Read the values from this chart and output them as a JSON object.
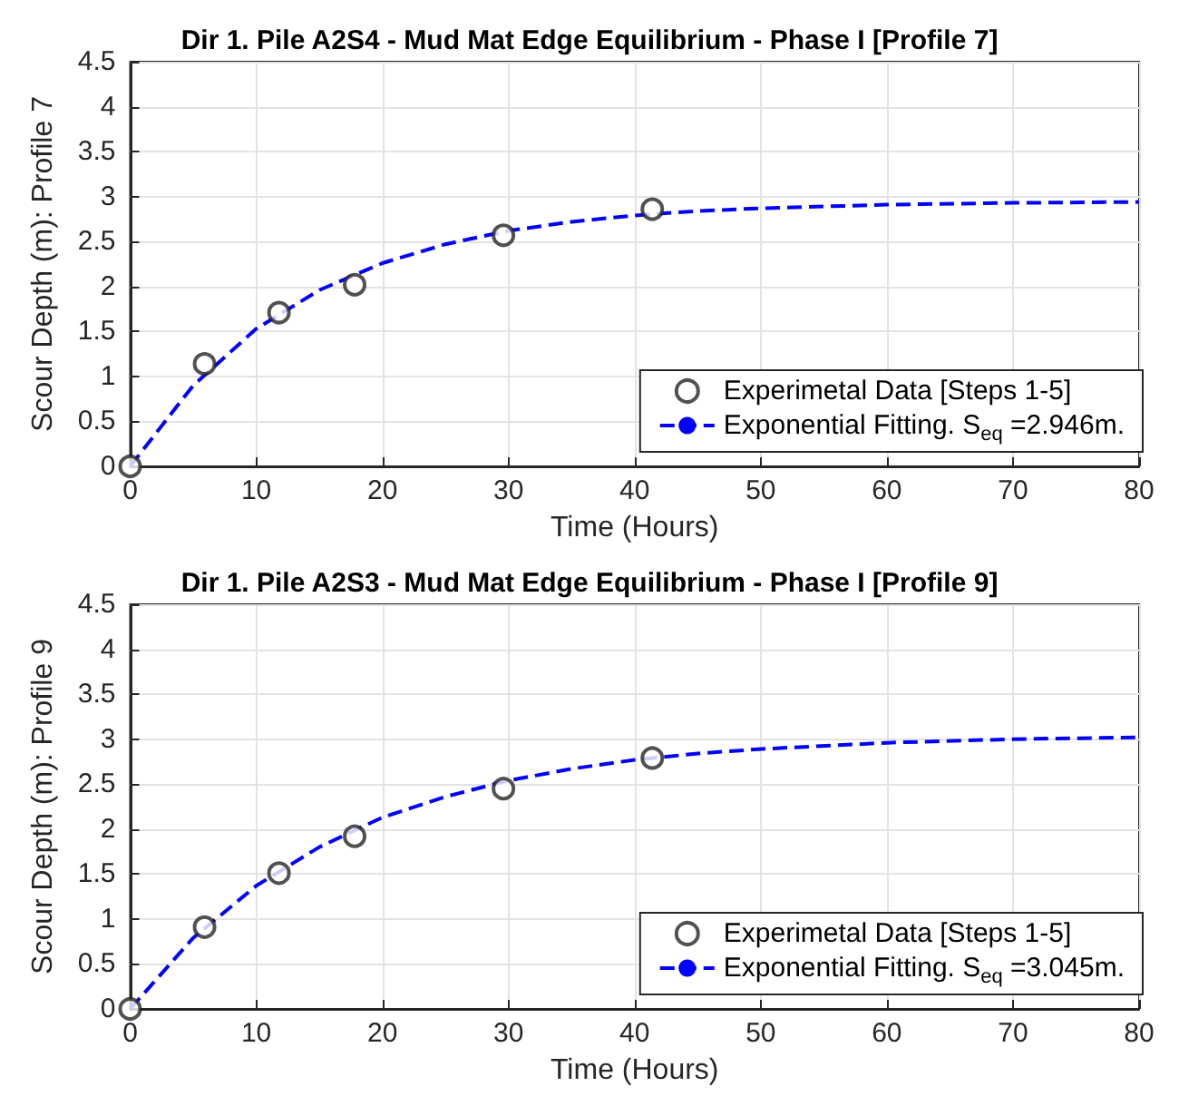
{
  "chart_data": [
    {
      "type": "scatter",
      "title": "Dir 1. Pile A2S4 - Mud Mat Edge Equilibrium - Phase I [Profile 7]",
      "xlabel": "Time (Hours)",
      "ylabel": "Scour Depth (m): Profile 7",
      "xlim": [
        0,
        80
      ],
      "xticks": [
        0,
        10,
        20,
        30,
        40,
        50,
        60,
        70,
        80
      ],
      "ylim": [
        0,
        4.5
      ],
      "yticks": [
        0,
        0.5,
        1,
        1.5,
        2,
        2.5,
        3,
        3.5,
        4,
        4.5
      ],
      "grid": true,
      "legend": "bottom right",
      "series": [
        {
          "name": "Experimetal Data [Steps 1-5]",
          "marker": "circle",
          "color": "#262626",
          "x": [
            0,
            5.9,
            11.8,
            17.8,
            29.6,
            41.4
          ],
          "values": [
            0,
            1.14,
            1.71,
            2.02,
            2.57,
            2.86
          ]
        },
        {
          "name": "Exponential Fitting. S$_{eq}$ =2.946m.",
          "type": "line",
          "line_style": "dashed",
          "marker": "none",
          "color": "#0000ff",
          "x": [
            0,
            5,
            10,
            15,
            20,
            25,
            30,
            35,
            40,
            45,
            50,
            60,
            70,
            80
          ],
          "values": [
            0,
            0.9,
            1.53,
            1.96,
            2.26,
            2.47,
            2.62,
            2.72,
            2.79,
            2.84,
            2.87,
            2.91,
            2.93,
            2.94
          ]
        }
      ]
    },
    {
      "type": "scatter",
      "title": "Dir 1. Pile A2S3 - Mud Mat Edge Equilibrium - Phase I [Profile 9]",
      "xlabel": "Time (Hours)",
      "ylabel": "Scour Depth (m): Profile 9",
      "xlim": [
        0,
        80
      ],
      "xticks": [
        0,
        10,
        20,
        30,
        40,
        50,
        60,
        70,
        80
      ],
      "ylim": [
        0,
        4.5
      ],
      "yticks": [
        0,
        0.5,
        1,
        1.5,
        2,
        2.5,
        3,
        3.5,
        4,
        4.5
      ],
      "grid": true,
      "legend": "bottom right",
      "series": [
        {
          "name": "Experimetal Data [Steps 1-5]",
          "marker": "circle",
          "color": "#262626",
          "x": [
            0,
            5.9,
            11.8,
            17.8,
            29.6,
            41.4
          ],
          "values": [
            0,
            0.91,
            1.51,
            1.92,
            2.45,
            2.79
          ]
        },
        {
          "name": "Exponential Fitting. S$_{eq}$ =3.045m.",
          "type": "line",
          "line_style": "dashed",
          "marker": "none",
          "color": "#0000ff",
          "x": [
            0,
            5,
            10,
            15,
            20,
            25,
            30,
            35,
            40,
            45,
            50,
            60,
            70,
            80
          ],
          "values": [
            0,
            0.79,
            1.37,
            1.8,
            2.13,
            2.36,
            2.54,
            2.67,
            2.77,
            2.84,
            2.89,
            2.96,
            3.0,
            3.02
          ]
        }
      ]
    }
  ]
}
